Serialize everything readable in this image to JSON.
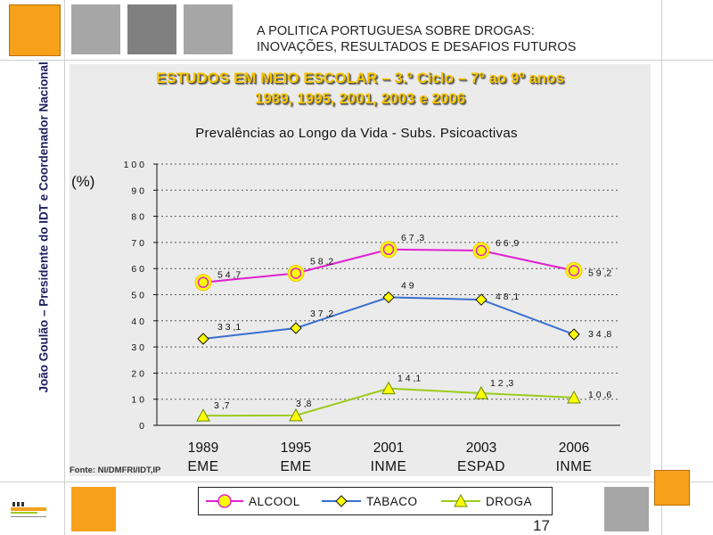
{
  "header": {
    "title_line1": "A POLITICA PORTUGUESA SOBRE DROGAS:",
    "title_line2": "INOVAÇÕES, RESULTADOS E DESAFIOS FUTUROS"
  },
  "sidebar": {
    "author": "João Goulão – Presidente do IDT e Coordenador Nacional"
  },
  "slide": {
    "title_line1": "ESTUDOS EM MEIO ESCOLAR – 3.º Ciclo – 7º ao 9º anos",
    "title_line2": "1989, 1995, 2001, 2003 e 2006",
    "unit_label": "(%)",
    "source": "Fonte: NI/DMFRI/IDT,IP",
    "page_number": "17"
  },
  "colors": {
    "alcool": "#e020d0",
    "tabaco": "#3a6fd0",
    "droga": "#9ccc1a",
    "marker_fill": "#ffff00",
    "orange_square": "#f7a11a"
  },
  "chart_data": {
    "type": "line",
    "title": "Prevalências ao Longo da Vida - Subs. Psicoactivas",
    "ylabel": "(%)",
    "xlabel": "",
    "ylim": [
      0,
      100
    ],
    "y_ticks": [
      "0",
      "1 0",
      "2 0",
      "3 0",
      "4 0",
      "5 0",
      "6 0",
      "7 0",
      "8 0",
      "9 0",
      "1 0 0"
    ],
    "categories": [
      {
        "year": "1989",
        "study": "EME"
      },
      {
        "year": "1995",
        "study": "EME"
      },
      {
        "year": "2001",
        "study": "INME"
      },
      {
        "year": "2003",
        "study": "ESPAD"
      },
      {
        "year": "2006",
        "study": "INME"
      }
    ],
    "grid": true,
    "legend_position": "bottom",
    "series": [
      {
        "name": "ALCOOL",
        "key": "alcool",
        "marker": "circle",
        "values": [
          54.7,
          58.2,
          67.3,
          66.9,
          59.2
        ],
        "labels": [
          "5 4 ,7",
          "5 8 ,2",
          "6 7 ,3",
          "6 6 ,9",
          "5 9 ,2"
        ]
      },
      {
        "name": "TABACO",
        "key": "tabaco",
        "marker": "diamond",
        "values": [
          33.1,
          37.2,
          49,
          48.1,
          34.8
        ],
        "labels": [
          "3 3 ,1",
          "3 7 ,2",
          "4 9",
          "4 8 ,1",
          "3 4 ,8"
        ]
      },
      {
        "name": "DROGA",
        "key": "droga",
        "marker": "triangle",
        "values": [
          3.7,
          3.8,
          14.1,
          12.3,
          10.6
        ],
        "labels": [
          "3 ,7",
          "3 ,8",
          "1 4 ,1",
          "1 2 ,3",
          "1 0 ,6"
        ]
      }
    ]
  }
}
